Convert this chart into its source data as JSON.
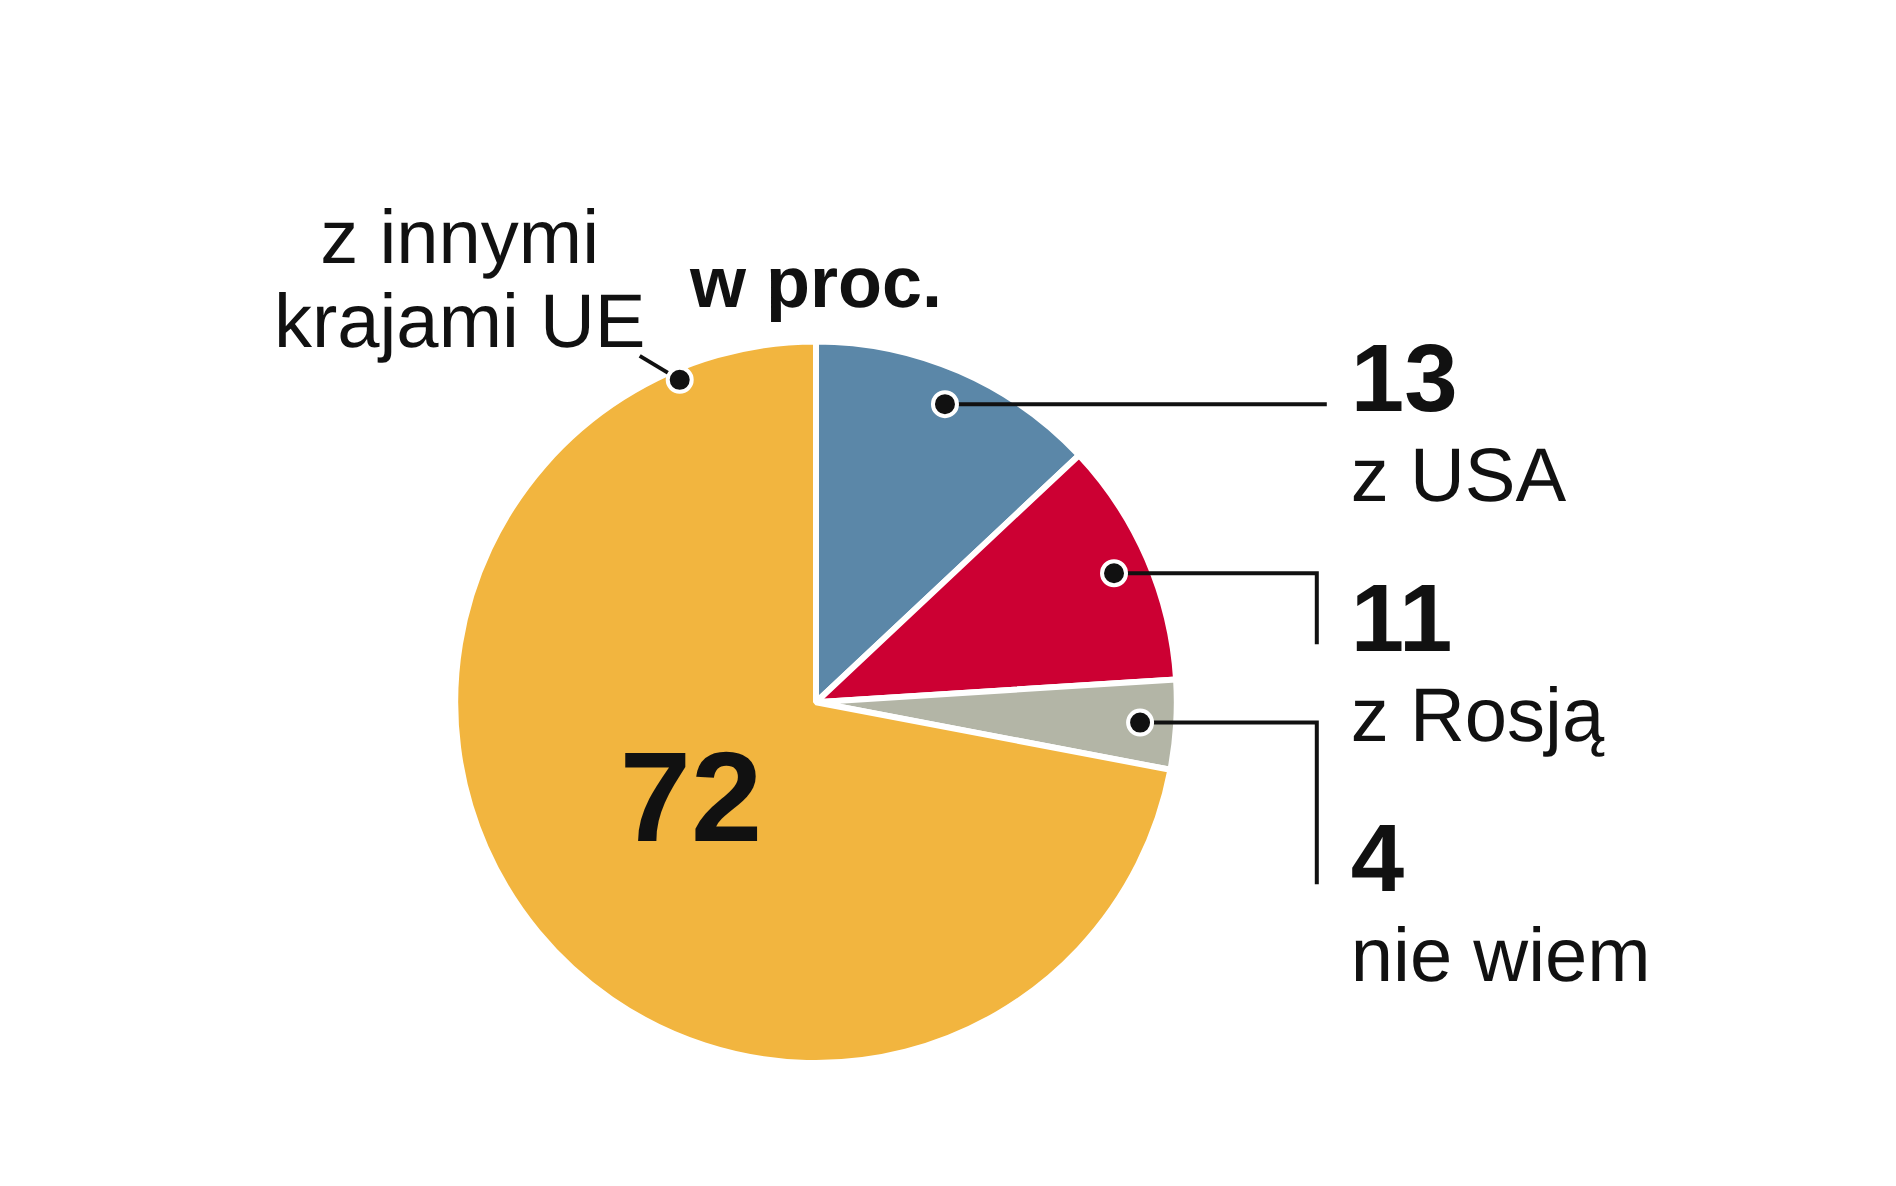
{
  "chart_data": {
    "type": "pie",
    "title": "w proc.",
    "categories": [
      "z USA",
      "z Rosją",
      "nie wiem",
      "z innymi krajami UE"
    ],
    "values": [
      13,
      11,
      4,
      72
    ],
    "colors": [
      "#5b87a8",
      "#cc0033",
      "#b3b5a6",
      "#f2b53f"
    ],
    "data_labels": true,
    "legend": false
  }
}
